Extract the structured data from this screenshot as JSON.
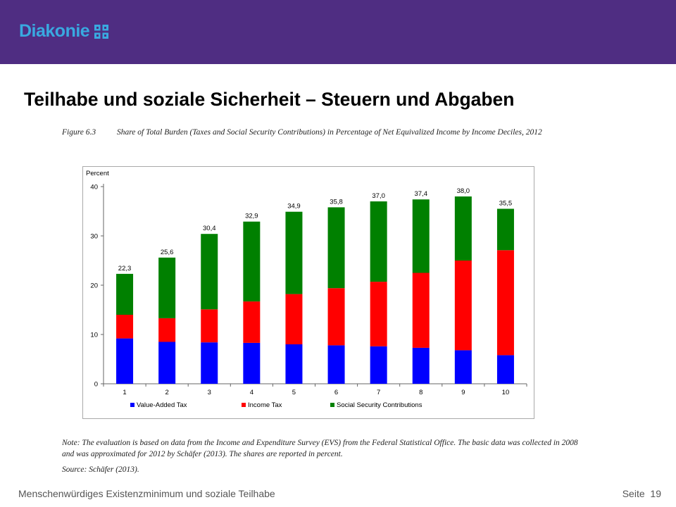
{
  "header": {
    "logo_text": "Diakonie",
    "logo_icon": "diakonie-cross-icon"
  },
  "slide": {
    "title": "Teilhabe und soziale Sicherheit – Steuern und Abgaben"
  },
  "figure": {
    "label": "Figure 6.3",
    "caption": "Share of Total Burden (Taxes and Social Security Contributions) in Percentage of Net Equivalized Income by Income Deciles, 2012",
    "note": "Note: The evaluation is based on data from the Income and Expenditure Survey (EVS) from the Federal Statistical Office. The basic data was collected in 2008 and was approximated for 2012 by Schäfer (2013). The shares are reported in percent.",
    "source": "Source: Schäfer (2013)."
  },
  "footer": {
    "left": "Menschenwürdiges Existenzminimum und soziale Teilhabe",
    "page_label": "Seite",
    "page_number": "19"
  },
  "colors": {
    "topbar": "#4f2d82",
    "logo": "#39a9e0",
    "vat": "#0000ff",
    "income_tax": "#ff0000",
    "social_security": "#008000"
  },
  "chart_data": {
    "type": "bar",
    "stacked": true,
    "ylabel": "Percent",
    "ylim": [
      0,
      40
    ],
    "yticks": [
      0,
      10,
      20,
      30,
      40
    ],
    "categories": [
      "1",
      "2",
      "3",
      "4",
      "5",
      "6",
      "7",
      "8",
      "9",
      "10"
    ],
    "series": [
      {
        "name": "Value-Added Tax",
        "color": "#0000ff",
        "values": [
          9.2,
          8.5,
          8.4,
          8.3,
          8.0,
          7.8,
          7.6,
          7.3,
          6.8,
          5.8
        ]
      },
      {
        "name": "Income Tax",
        "color": "#ff0000",
        "values": [
          4.8,
          4.8,
          6.7,
          8.4,
          10.2,
          11.6,
          13.1,
          15.2,
          18.2,
          21.3
        ]
      },
      {
        "name": "Social Security Contributions",
        "color": "#008000",
        "values": [
          8.3,
          12.3,
          15.3,
          16.2,
          16.7,
          16.4,
          16.3,
          14.9,
          13.0,
          8.4
        ]
      }
    ],
    "totals": [
      "22,3",
      "25,6",
      "30,4",
      "32,9",
      "34,9",
      "35,8",
      "37,0",
      "37,4",
      "38,0",
      "35,5"
    ],
    "legend_position": "bottom",
    "grid": false
  }
}
